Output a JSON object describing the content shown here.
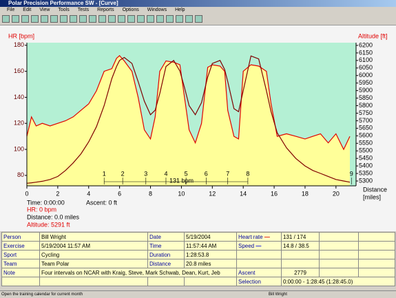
{
  "window": {
    "title": "Polar Precision Performance SW - [Curve]",
    "menu": [
      "File",
      "Edit",
      "View",
      "Tools",
      "Tests",
      "Reports",
      "Options",
      "Windows",
      "Help"
    ],
    "status": [
      "Open the training calendar for current month",
      "Bill Wright"
    ]
  },
  "chart_data": {
    "type": "line",
    "ylabel": "HR [bpm]",
    "y2label": "Altitude [ft]",
    "xlabel": [
      "Distance",
      "[miles]"
    ],
    "xlim": [
      0,
      21.3
    ],
    "xticks": [
      0,
      2,
      4,
      6,
      8,
      10,
      12,
      14,
      16,
      18,
      20
    ],
    "ylim": [
      72,
      182
    ],
    "yticks": [
      80,
      100,
      120,
      140,
      160,
      180
    ],
    "y2lim": [
      5268,
      6218
    ],
    "y2ticks": [
      5300,
      5350,
      5400,
      5450,
      5500,
      5550,
      5600,
      5650,
      5700,
      5750,
      5800,
      5850,
      5900,
      5950,
      6000,
      6050,
      6100,
      6150,
      6200
    ],
    "x": [
      0,
      0.3,
      0.6,
      1,
      1.5,
      2,
      2.5,
      3,
      3.5,
      4,
      4.5,
      5,
      5.5,
      5.8,
      6,
      6.3,
      6.8,
      7.2,
      7.6,
      8,
      8.3,
      8.6,
      9,
      9.5,
      9.9,
      10.2,
      10.5,
      10.9,
      11.3,
      11.7,
      12,
      12.5,
      12.8,
      13,
      13.4,
      13.7,
      14,
      14.5,
      15,
      15.5,
      15.8,
      16.2,
      16.8,
      17.4,
      18,
      18.5,
      19,
      19.5,
      20,
      20.5,
      20.9
    ],
    "series": [
      {
        "name": "Heart rate",
        "color": "#e00000",
        "fill": "#ffff99",
        "values": [
          110,
          125,
          118,
          120,
          118,
          120,
          122,
          125,
          130,
          135,
          145,
          160,
          162,
          170,
          172,
          168,
          160,
          140,
          115,
          108,
          125,
          160,
          168,
          167,
          165,
          140,
          115,
          105,
          120,
          163,
          165,
          164,
          160,
          130,
          110,
          108,
          160,
          165,
          164,
          160,
          135,
          110,
          112,
          110,
          108,
          110,
          112,
          105,
          112,
          100,
          110
        ]
      },
      {
        "name": "Altitude",
        "color": "#800000",
        "axis": "y2",
        "values": [
          5285,
          5288,
          5292,
          5298,
          5310,
          5330,
          5370,
          5420,
          5480,
          5560,
          5660,
          5800,
          5980,
          6060,
          6100,
          6120,
          6080,
          5960,
          5830,
          5740,
          5770,
          5880,
          6060,
          6100,
          6030,
          5920,
          5800,
          5740,
          5820,
          5990,
          6080,
          6100,
          6040,
          5960,
          5780,
          5760,
          5900,
          6130,
          6110,
          5900,
          5760,
          5620,
          5520,
          5450,
          5400,
          5370,
          5350,
          5330,
          5310,
          5300,
          5292
        ]
      }
    ],
    "laps": [
      {
        "label": "1",
        "x": 5.0
      },
      {
        "label": "2",
        "x": 6.2
      },
      {
        "label": "3",
        "x": 7.7
      },
      {
        "label": "4",
        "x": 9.0
      },
      {
        "label": "5",
        "x": 10.3
      },
      {
        "label": "6",
        "x": 11.6
      },
      {
        "label": "7",
        "x": 13.0
      },
      {
        "label": "8",
        "x": 14.3
      },
      {
        "label": "9",
        "x": 21.0
      }
    ],
    "annotation": "131 bpm",
    "cursor_info": [
      "Time: 0:00:00",
      "HR: 0 bpm",
      "Distance: 0.0 miles",
      "Altitude: 5291 ft",
      "Ascent: 0 ft"
    ]
  },
  "table": {
    "rows": [
      [
        "Person",
        "Bill Wright",
        "Date",
        "5/19/2004",
        "Heart rate",
        "131 / 174"
      ],
      [
        "Exercise",
        "5/19/2004 11:57 AM",
        "Time",
        "11:57:44 AM",
        "Speed",
        "14.8 / 38.5"
      ],
      [
        "Sport",
        "Cycling",
        "Duration",
        "1:28:53.8"
      ],
      [
        "Team",
        "Team Polar",
        "Distance",
        "20.8 miles"
      ],
      [
        "Note",
        "Four intervals on NCAR with Kraig, Steve, Mark Schwab, Dean, Kurt, Jeb",
        "Ascent",
        "2779"
      ],
      [
        "Selection",
        "0:00:00 - 1:28:45 (1:28:45.0)"
      ]
    ]
  }
}
